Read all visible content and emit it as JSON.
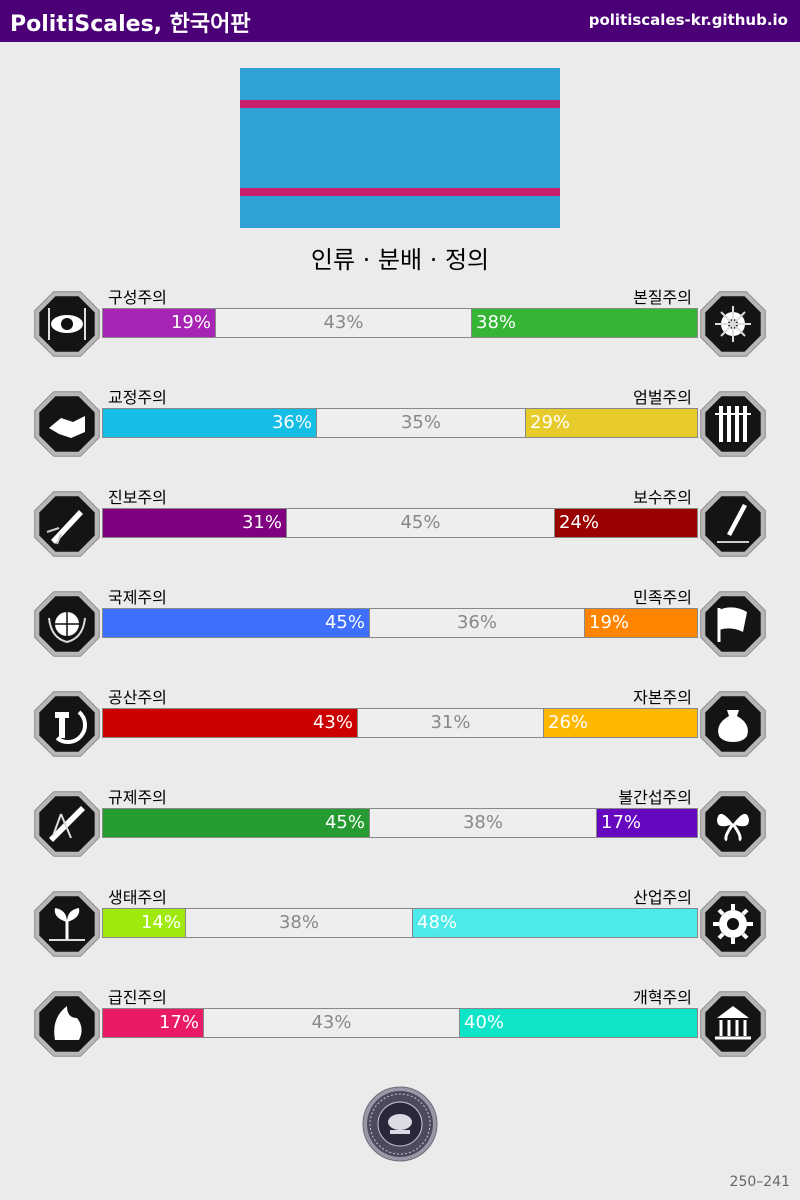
{
  "header": {
    "title": "PolitiScales, 한국어판",
    "url": "politiscales-kr.github.io"
  },
  "flag": {
    "background": "#2fa1d4",
    "stripe_color": "#c8206e"
  },
  "ideology_title": "인류 · 분배 · 정의",
  "axes": [
    {
      "left_label": "구성주의",
      "right_label": "본질주의",
      "left_value": 19,
      "middle_value": 43,
      "right_value": 38,
      "left_pct": "19%",
      "middle_pct": "43%",
      "right_pct": "38%",
      "left_color": "#a724b4",
      "right_color": "#34b534",
      "left_icon": "eye-icon",
      "right_icon": "dna-flower-icon"
    },
    {
      "left_label": "교정주의",
      "right_label": "엄벌주의",
      "left_value": 36,
      "middle_value": 35,
      "right_value": 29,
      "left_pct": "36%",
      "middle_pct": "35%",
      "right_pct": "29%",
      "left_color": "#15bee5",
      "right_color": "#e6cb2a",
      "left_icon": "handshake-icon",
      "right_icon": "prison-bars-icon"
    },
    {
      "left_label": "진보주의",
      "right_label": "보수주의",
      "left_value": 31,
      "middle_value": 45,
      "right_value": 24,
      "left_pct": "31%",
      "middle_pct": "45%",
      "right_pct": "24%",
      "left_color": "#800080",
      "right_color": "#990000",
      "left_icon": "rocket-icon",
      "right_icon": "quill-pen-icon"
    },
    {
      "left_label": "국제주의",
      "right_label": "민족주의",
      "left_value": 45,
      "middle_value": 36,
      "right_value": 19,
      "left_pct": "45%",
      "middle_pct": "36%",
      "right_pct": "19%",
      "left_color": "#3e6ffd",
      "right_color": "#ff8500",
      "left_icon": "globe-laurel-icon",
      "right_icon": "flag-icon"
    },
    {
      "left_label": "공산주의",
      "right_label": "자본주의",
      "left_value": 43,
      "middle_value": 31,
      "right_value": 26,
      "left_pct": "43%",
      "middle_pct": "31%",
      "right_pct": "26%",
      "left_color": "#cc0000",
      "right_color": "#ffb800",
      "left_icon": "hammer-sickle-icon",
      "right_icon": "money-bag-icon"
    },
    {
      "left_label": "규제주의",
      "right_label": "불간섭주의",
      "left_value": 45,
      "middle_value": 38,
      "right_value": 17,
      "left_pct": "45%",
      "middle_pct": "38%",
      "right_pct": "17%",
      "left_color": "#269b32",
      "right_color": "#6608c0",
      "left_icon": "ruler-compass-icon",
      "right_icon": "butterflies-icon"
    },
    {
      "left_label": "생태주의",
      "right_label": "산업주의",
      "left_value": 14,
      "middle_value": 38,
      "right_value": 48,
      "left_pct": "14%",
      "middle_pct": "38%",
      "right_pct": "48%",
      "left_color": "#a0e90d",
      "right_color": "#4deae9",
      "left_icon": "sprout-icon",
      "right_icon": "gear-icon"
    },
    {
      "left_label": "급진주의",
      "right_label": "개혁주의",
      "left_value": 17,
      "middle_value": 43,
      "right_value": 40,
      "left_pct": "17%",
      "middle_pct": "43%",
      "right_pct": "40%",
      "left_color": "#eb1a66",
      "right_color": "#0ee4c8",
      "left_icon": "fist-flame-icon",
      "right_icon": "parliament-icon"
    }
  ],
  "seal_icon": "seal-icon",
  "footer_code": "250–241"
}
